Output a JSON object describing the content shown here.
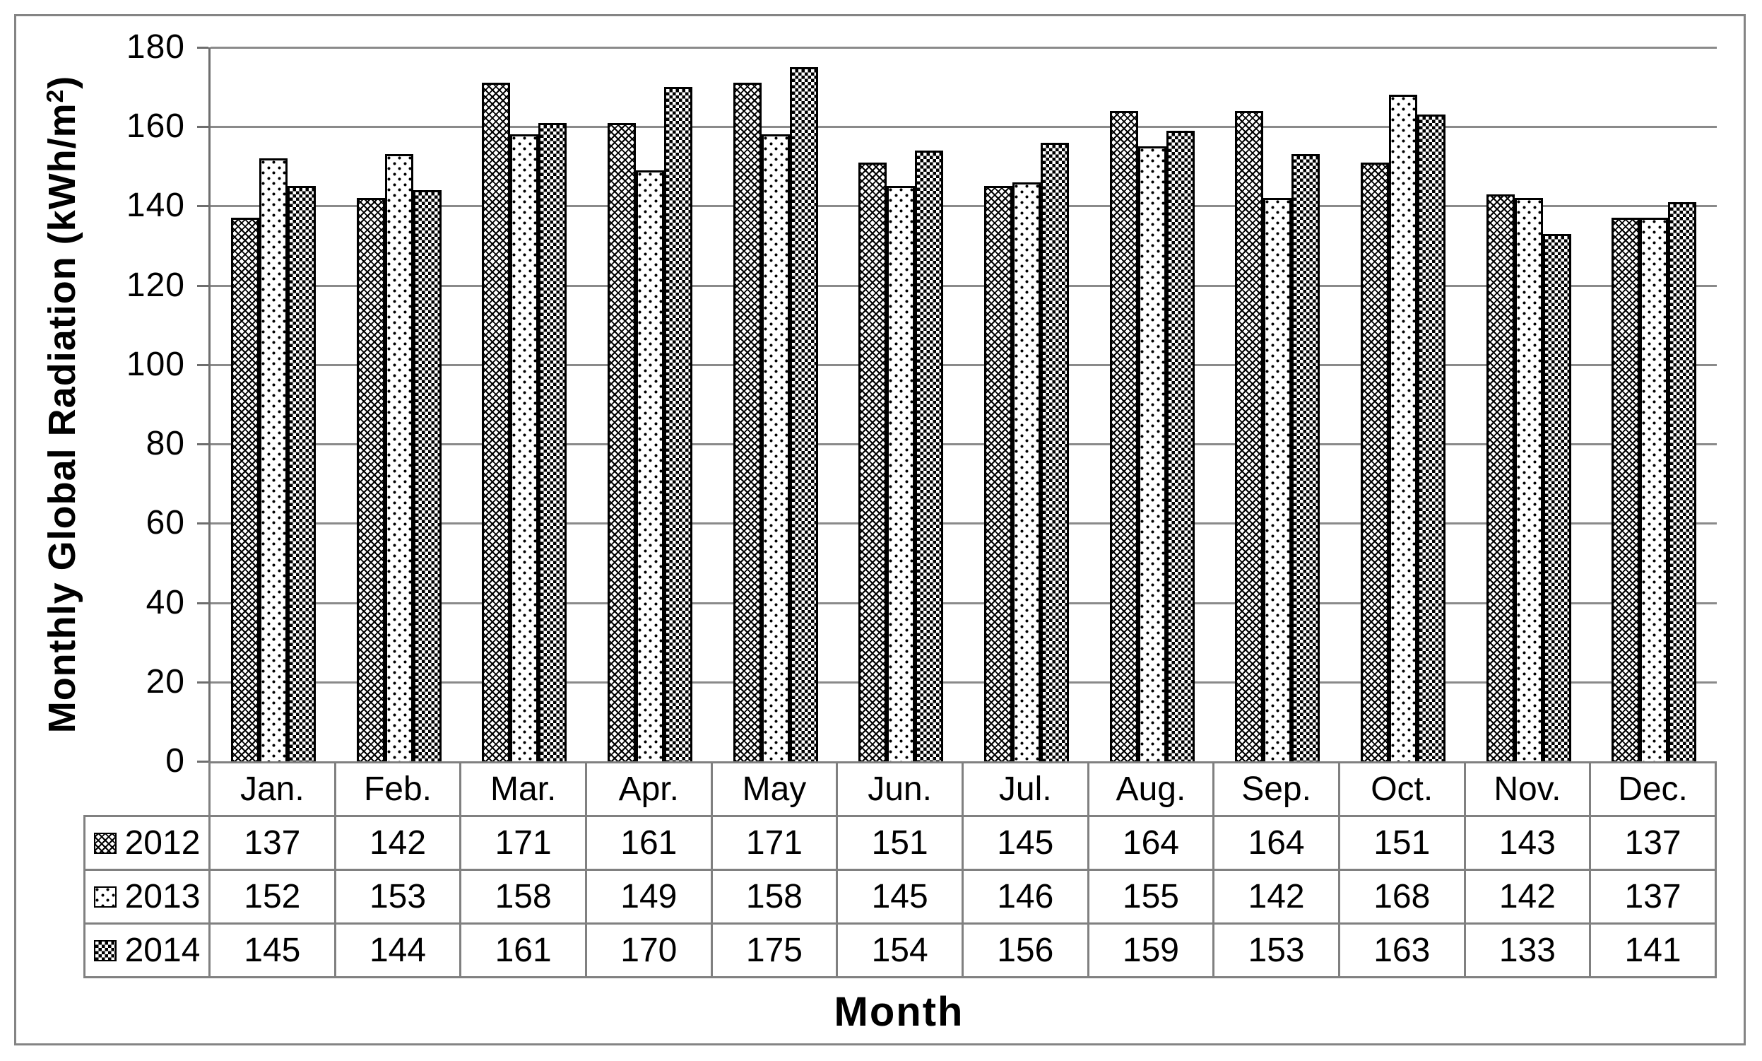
{
  "chart_data": {
    "type": "bar",
    "title": "",
    "xlabel": "Month",
    "ylabel_prefix": "Monthly Global Radiation (kWh/m",
    "ylabel_sup": "2",
    "ylabel_suffix": ")",
    "ylim": [
      0,
      180
    ],
    "yticks": [
      0,
      20,
      40,
      60,
      80,
      100,
      120,
      140,
      160,
      180
    ],
    "grid": true,
    "legend_position": "table-left-column",
    "categories": [
      "Jan.",
      "Feb.",
      "Mar.",
      "Apr.",
      "May",
      "Jun.",
      "Jul.",
      "Aug.",
      "Sep.",
      "Oct.",
      "Nov.",
      "Dec."
    ],
    "series": [
      {
        "name": "2012",
        "pattern": "diamond-crosshatch",
        "values": [
          137,
          142,
          171,
          161,
          171,
          151,
          145,
          164,
          164,
          151,
          143,
          137
        ]
      },
      {
        "name": "2013",
        "pattern": "sparse-dots",
        "values": [
          152,
          153,
          158,
          149,
          158,
          145,
          146,
          155,
          142,
          168,
          142,
          137
        ]
      },
      {
        "name": "2014",
        "pattern": "checkerboard",
        "values": [
          145,
          144,
          161,
          170,
          175,
          154,
          156,
          159,
          153,
          163,
          133,
          141
        ]
      }
    ],
    "colors": {
      "foreground": "#000000",
      "background": "#ffffff",
      "gridline": "#8a8a8a",
      "axis_line": "#6e6e6e",
      "table_border": "#808080",
      "outer_border": "#848484"
    }
  }
}
